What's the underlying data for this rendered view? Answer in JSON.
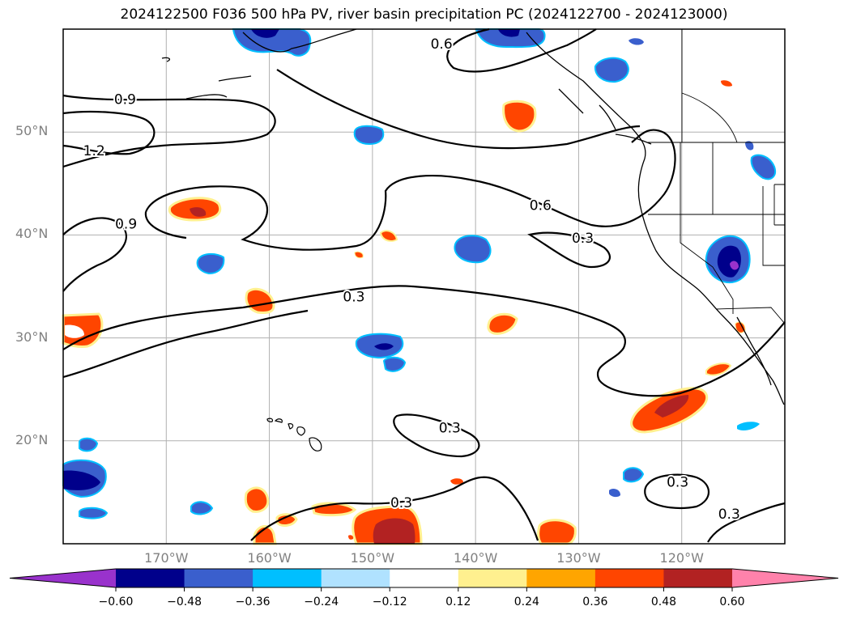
{
  "title": "2024122500 F036 500 hPa PV, river basin precipitation PC (2024122700 - 2024123000)",
  "colors": {
    "land": "#ffffff",
    "ocean": "#ffffff",
    "grid": "#b0b0b0",
    "contour": "#000000"
  },
  "map": {
    "lon_range": [
      -180,
      -110
    ],
    "lat_range": [
      10,
      60
    ]
  },
  "lat_labels": [
    {
      "text": "50°N",
      "lat": 50
    },
    {
      "text": "40°N",
      "lat": 40
    },
    {
      "text": "30°N",
      "lat": 30
    },
    {
      "text": "20°N",
      "lat": 20
    }
  ],
  "lon_labels": [
    {
      "text": "170°W",
      "lon": -170
    },
    {
      "text": "160°W",
      "lon": -160
    },
    {
      "text": "150°W",
      "lon": -150
    },
    {
      "text": "140°W",
      "lon": -140
    },
    {
      "text": "130°W",
      "lon": -130
    },
    {
      "text": "120°W",
      "lon": -120
    }
  ],
  "contour_labels": [
    {
      "text": "0.6",
      "lon": -143.3,
      "lat": 58.6
    },
    {
      "text": "0.9",
      "lon": -174.0,
      "lat": 53.2
    },
    {
      "text": "1.2",
      "lon": -177.0,
      "lat": 48.2
    },
    {
      "text": "0.9",
      "lon": -173.9,
      "lat": 41.1
    },
    {
      "text": "0.6",
      "lon": -133.7,
      "lat": 42.9
    },
    {
      "text": "0.3",
      "lon": -129.6,
      "lat": 39.7
    },
    {
      "text": "0.3",
      "lon": -151.8,
      "lat": 34.0
    },
    {
      "text": "0.3",
      "lon": -142.5,
      "lat": 21.3
    },
    {
      "text": "0.3",
      "lon": -120.4,
      "lat": 16.0
    },
    {
      "text": "0.3",
      "lon": -147.2,
      "lat": 14.0
    },
    {
      "text": "0.3",
      "lon": -115.4,
      "lat": 12.9
    }
  ],
  "colorbar": {
    "ticks": [
      "−0.60",
      "−0.48",
      "−0.36",
      "−0.24",
      "−0.12",
      "0.12",
      "0.24",
      "0.36",
      "0.48",
      "0.60"
    ],
    "colors": [
      "#9932cc",
      "#00008b",
      "#3a5fcd",
      "#00bfff",
      "#b0e2ff",
      "#ffffff",
      "#fff08f",
      "#ffa500",
      "#ff4500",
      "#b22222",
      "#ff82ab"
    ]
  }
}
